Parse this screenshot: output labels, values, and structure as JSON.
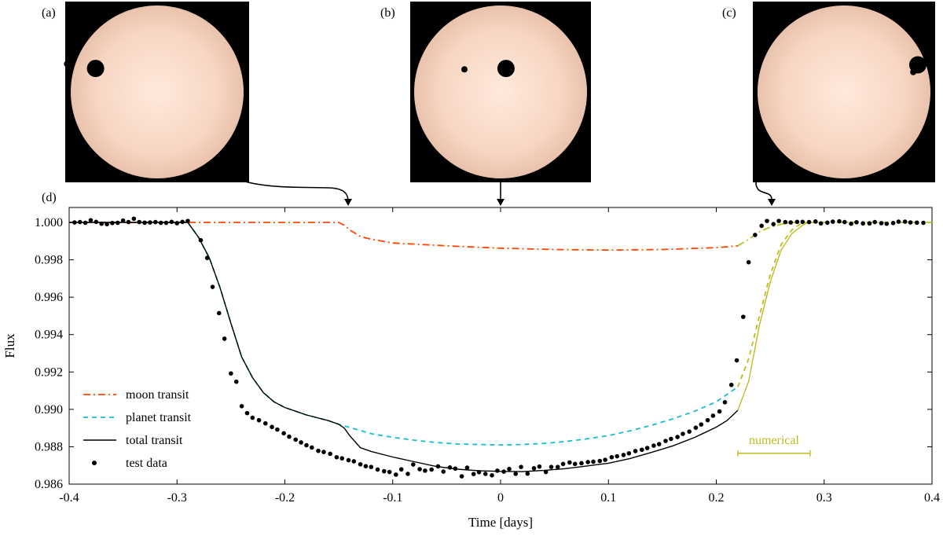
{
  "panels": [
    {
      "label": "(a)",
      "planet_xy": [
        0.165,
        0.37
      ],
      "moon_xy": [
        0.01,
        0.345
      ]
    },
    {
      "label": "(b)",
      "planet_xy": [
        0.53,
        0.37
      ],
      "moon_xy": [
        0.3,
        0.375
      ]
    },
    {
      "label": "(c)",
      "planet_xy": [
        0.905,
        0.35
      ],
      "moon_xy": [
        0.88,
        0.39
      ]
    }
  ],
  "chart_label": "(d)",
  "chart_data": {
    "type": "line",
    "xlabel": "Time [days]",
    "ylabel": "Flux",
    "xlim": [
      -0.4,
      0.4
    ],
    "ylim": [
      0.986,
      1.0008
    ],
    "xticks": [
      -0.4,
      -0.3,
      -0.2,
      -0.1,
      0,
      0.1,
      0.2,
      0.3,
      0.4
    ],
    "xtick_labels": [
      "-0.4",
      "-0.3",
      "-0.2",
      "-0.1",
      "0",
      "0.1",
      "0.2",
      "0.3",
      "0.4"
    ],
    "yticks": [
      0.986,
      0.988,
      0.99,
      0.992,
      0.994,
      0.996,
      0.998,
      1.0
    ],
    "ytick_labels": [
      "0.986",
      "0.988",
      "0.990",
      "0.992",
      "0.994",
      "0.996",
      "0.998",
      "1.000"
    ],
    "series": [
      {
        "name": "moon transit",
        "style": "dashdot",
        "color": "#ff4500",
        "x": [
          -0.4,
          -0.15,
          -0.145,
          -0.14,
          -0.13,
          -0.12,
          -0.1,
          -0.05,
          0,
          0.05,
          0.1,
          0.15,
          0.2,
          0.22
        ],
        "y": [
          1.0,
          1.0,
          0.99985,
          0.9996,
          0.99925,
          0.9991,
          0.9989,
          0.99875,
          0.99862,
          0.99855,
          0.99852,
          0.99855,
          0.99865,
          0.99875
        ]
      },
      {
        "name": "moon transit numerical",
        "style": "dashdot",
        "color": "#bcbd22",
        "x": [
          0.22,
          0.23,
          0.24,
          0.25,
          0.26,
          0.27,
          0.28,
          0.4
        ],
        "y": [
          0.99875,
          0.9991,
          0.9995,
          0.99975,
          0.9999,
          1.0,
          1.0,
          1.0
        ]
      },
      {
        "name": "planet transit",
        "style": "dashed",
        "color": "#17becf",
        "x": [
          -0.29,
          -0.28,
          -0.27,
          -0.26,
          -0.25,
          -0.24,
          -0.23,
          -0.22,
          -0.21,
          -0.2,
          -0.18,
          -0.16,
          -0.15,
          -0.12,
          -0.1,
          -0.08,
          -0.06,
          -0.04,
          -0.02,
          0,
          0.02,
          0.04,
          0.06,
          0.08,
          0.1,
          0.12,
          0.14,
          0.16,
          0.18,
          0.2,
          0.22
        ],
        "y": [
          1.0,
          0.9992,
          0.9981,
          0.9965,
          0.9946,
          0.9928,
          0.9917,
          0.9909,
          0.9904,
          0.9901,
          0.9897,
          0.9894,
          0.9892,
          0.9887,
          0.9885,
          0.98835,
          0.98823,
          0.98815,
          0.98812,
          0.9881,
          0.98812,
          0.98818,
          0.98828,
          0.98842,
          0.9886,
          0.98885,
          0.98915,
          0.9895,
          0.9899,
          0.9904,
          0.9912
        ]
      },
      {
        "name": "planet transit numerical",
        "style": "dashed",
        "color": "#bcbd22",
        "x": [
          0.22,
          0.23,
          0.24,
          0.25,
          0.26,
          0.27,
          0.28,
          0.29
        ],
        "y": [
          0.9912,
          0.9927,
          0.995,
          0.9972,
          0.9988,
          0.9996,
          1.0,
          1.0
        ]
      },
      {
        "name": "total transit",
        "style": "solid",
        "color": "#000000",
        "x": [
          -0.4,
          -0.29,
          -0.28,
          -0.27,
          -0.26,
          -0.25,
          -0.24,
          -0.23,
          -0.22,
          -0.21,
          -0.2,
          -0.18,
          -0.16,
          -0.15,
          -0.145,
          -0.14,
          -0.13,
          -0.12,
          -0.1,
          -0.08,
          -0.06,
          -0.04,
          -0.02,
          0,
          0.02,
          0.04,
          0.06,
          0.08,
          0.1,
          0.12,
          0.14,
          0.16,
          0.18,
          0.2,
          0.21,
          0.22
        ],
        "y": [
          1.0,
          1.0,
          0.9992,
          0.9981,
          0.9965,
          0.9946,
          0.9928,
          0.9917,
          0.9909,
          0.9904,
          0.9901,
          0.9897,
          0.9894,
          0.9892,
          0.989,
          0.9886,
          0.98795,
          0.98775,
          0.98745,
          0.9872,
          0.98695,
          0.9868,
          0.98672,
          0.98668,
          0.98667,
          0.98673,
          0.98683,
          0.98697,
          0.98712,
          0.98737,
          0.9877,
          0.98805,
          0.9885,
          0.98905,
          0.9894,
          0.98995
        ]
      },
      {
        "name": "total transit numerical",
        "style": "solid",
        "color": "#bcbd22",
        "x": [
          0.22,
          0.23,
          0.24,
          0.25,
          0.26,
          0.27,
          0.28,
          0.285
        ],
        "y": [
          0.98995,
          0.9915,
          0.9945,
          0.9968,
          0.9985,
          0.9994,
          0.99985,
          1.0
        ]
      }
    ],
    "test_data": {
      "x": [
        -0.395,
        -0.39,
        -0.385,
        -0.38,
        -0.375,
        -0.37,
        -0.365,
        -0.36,
        -0.355,
        -0.35,
        -0.345,
        -0.34,
        -0.335,
        -0.33,
        -0.325,
        -0.32,
        -0.315,
        -0.31,
        -0.305,
        -0.3,
        -0.295,
        -0.29,
        -0.278,
        -0.272,
        -0.267,
        -0.261,
        -0.256,
        -0.25,
        -0.245,
        -0.24,
        -0.235,
        -0.23,
        -0.224,
        -0.218,
        -0.212,
        -0.207,
        -0.201,
        -0.196,
        -0.19,
        -0.185,
        -0.18,
        -0.175,
        -0.169,
        -0.164,
        -0.158,
        -0.152,
        -0.147,
        -0.141,
        -0.136,
        -0.13,
        -0.125,
        -0.12,
        -0.114,
        -0.108,
        -0.103,
        -0.097,
        -0.092,
        -0.086,
        -0.081,
        -0.075,
        -0.07,
        -0.064,
        -0.058,
        -0.053,
        -0.047,
        -0.042,
        -0.036,
        -0.031,
        -0.025,
        -0.02,
        -0.014,
        -0.008,
        -0.003,
        0.003,
        0.008,
        0.014,
        0.019,
        0.025,
        0.031,
        0.036,
        0.042,
        0.047,
        0.053,
        0.058,
        0.064,
        0.069,
        0.075,
        0.081,
        0.086,
        0.092,
        0.097,
        0.103,
        0.108,
        0.114,
        0.119,
        0.125,
        0.131,
        0.136,
        0.142,
        0.147,
        0.153,
        0.158,
        0.164,
        0.169,
        0.175,
        0.181,
        0.186,
        0.192,
        0.197,
        0.203,
        0.208,
        0.214,
        0.219,
        0.225,
        0.23,
        0.236,
        0.242,
        0.247,
        0.253,
        0.258,
        0.264,
        0.269,
        0.275,
        0.28,
        0.286,
        0.292,
        0.297,
        0.303,
        0.308,
        0.314,
        0.319,
        0.325,
        0.33,
        0.336,
        0.342,
        0.347,
        0.353,
        0.358,
        0.364,
        0.369,
        0.375,
        0.38,
        0.386,
        0.392
      ],
      "y": [
        1.0,
        1.00002,
        0.99998,
        1.00012,
        1.00003,
        0.99993,
        0.99991,
        0.99997,
        0.99998,
        1.0001,
        1.00002,
        1.0002,
        1.00002,
        0.99999,
        1.0,
        1.00002,
        0.99998,
        0.99998,
        1.00003,
        0.99996,
        1.00003,
        1.00008,
        0.99905,
        0.9981,
        0.99655,
        0.99515,
        0.99378,
        0.99192,
        0.99148,
        0.99017,
        0.9898,
        0.98955,
        0.98942,
        0.98925,
        0.98906,
        0.98892,
        0.98872,
        0.98854,
        0.98838,
        0.98823,
        0.98808,
        0.98796,
        0.98778,
        0.98772,
        0.98762,
        0.98744,
        0.98738,
        0.98728,
        0.98722,
        0.98706,
        0.98696,
        0.98692,
        0.98678,
        0.98669,
        0.98665,
        0.98651,
        0.98679,
        0.98655,
        0.98705,
        0.9868,
        0.98672,
        0.98678,
        0.98695,
        0.98667,
        0.98689,
        0.98683,
        0.98642,
        0.98688,
        0.98654,
        0.98664,
        0.98655,
        0.98647,
        0.98672,
        0.98667,
        0.98681,
        0.98655,
        0.98692,
        0.98656,
        0.98685,
        0.98694,
        0.98665,
        0.98692,
        0.98692,
        0.98708,
        0.98716,
        0.98708,
        0.98712,
        0.98718,
        0.9872,
        0.98724,
        0.9873,
        0.98744,
        0.98749,
        0.98756,
        0.98765,
        0.98777,
        0.98784,
        0.98793,
        0.98806,
        0.98814,
        0.98831,
        0.98842,
        0.98852,
        0.98869,
        0.98881,
        0.98902,
        0.98919,
        0.98942,
        0.98966,
        0.98989,
        0.99038,
        0.99131,
        0.99262,
        0.99495,
        0.99787,
        0.99933,
        0.99982,
        1.00008,
        0.99991,
        1.00008,
        1.00002,
        1.0,
        1.00003,
        1.00003,
        1.00002,
        1.00005,
        0.99995,
        0.99999,
        1.00004,
        1.00006,
        1.00002,
        0.99993,
        1.00001,
        0.99995,
        0.99995,
        1.00002,
        0.99996,
        0.99993,
        0.99997,
        1.00004,
        1.00004,
        1.0,
        0.99999,
        0.99998
      ]
    },
    "legend": {
      "placement": "bottom-left",
      "entries": [
        {
          "label": "moon transit",
          "style": "dashdot",
          "color": "#ff4500"
        },
        {
          "label": "planet transit",
          "style": "dashed",
          "color": "#17becf"
        },
        {
          "label": "total transit",
          "style": "solid",
          "color": "#000000"
        },
        {
          "label": "test data",
          "style": "marker",
          "color": "#000000"
        }
      ]
    },
    "annotation": {
      "text": "numerical",
      "color": "#bcbd22",
      "x_range": [
        0.22,
        0.287
      ],
      "y": 0.98765,
      "text_y": 0.98815
    }
  },
  "colors": {
    "star_center": "#ffe9dc",
    "star_edge": "#e9c2ac",
    "panel_bg": "#000000"
  }
}
